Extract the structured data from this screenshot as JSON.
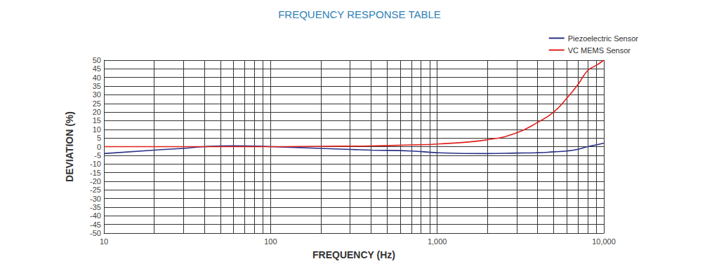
{
  "chart_data": {
    "type": "line",
    "title": "FREQUENCY RESPONSE TABLE",
    "x_label": "FREQUENCY (Hz)",
    "y_label": "DEVIATION (%)",
    "x": [
      10,
      20,
      30,
      40,
      60,
      100,
      200,
      400,
      700,
      1000,
      2000,
      3000,
      4000,
      5000,
      6000,
      7000,
      8000,
      9000,
      10000
    ],
    "series": [
      {
        "name": "Piezoelectric Sensor",
        "color": "#2b3187",
        "values": [
          -4,
          -2,
          -1,
          0,
          0.5,
          0,
          -1,
          -2,
          -2.5,
          -3.5,
          -4,
          -3.7,
          -3.5,
          -3,
          -2.5,
          -1.5,
          0,
          1,
          2
        ]
      },
      {
        "name": "VC MEMS Sensor",
        "color": "#e0201b",
        "values": [
          0,
          0,
          0,
          0,
          0,
          0,
          0.2,
          0.4,
          1,
          1.5,
          4,
          8,
          14,
          20,
          28,
          36,
          44,
          47,
          50
        ]
      }
    ],
    "xlim": [
      10,
      10000
    ],
    "xticks": [
      10,
      100,
      {
        "value": 1000,
        "label": "1,000"
      },
      {
        "value": 10000,
        "label": "10,000"
      }
    ],
    "ylim": [
      -50,
      50
    ],
    "yticks": [
      -50,
      -45,
      -40,
      -35,
      -30,
      -25,
      -20,
      -15,
      -10,
      -5,
      0,
      5,
      10,
      15,
      20,
      25,
      30,
      35,
      40,
      45,
      50
    ],
    "log": "x",
    "grid": true,
    "legend": "upper right"
  }
}
